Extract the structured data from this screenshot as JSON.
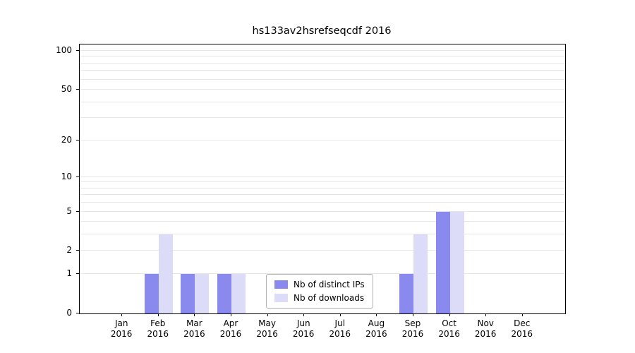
{
  "chart_data": {
    "type": "bar",
    "title": "hs133av2hsrefseqcdf 2016",
    "categories": [
      "Jan",
      "Feb",
      "Mar",
      "Apr",
      "May",
      "Jun",
      "Jul",
      "Aug",
      "Sep",
      "Oct",
      "Nov",
      "Dec"
    ],
    "year": "2016",
    "series": [
      {
        "name": "Nb of distinct IPs",
        "color": "#8a8aee",
        "values": [
          0,
          1,
          1,
          1,
          0,
          0,
          0,
          0,
          1,
          5,
          0,
          0
        ]
      },
      {
        "name": "Nb of downloads",
        "color": "#dcdcf8",
        "values": [
          0,
          3,
          1,
          1,
          0,
          0,
          0,
          0,
          3,
          5,
          0,
          0
        ]
      }
    ],
    "y_ticks": [
      0,
      1,
      2,
      5,
      10,
      20,
      50,
      100
    ],
    "grid_values": [
      1,
      2,
      3,
      4,
      5,
      6,
      7,
      8,
      9,
      10,
      20,
      30,
      40,
      50,
      60,
      70,
      80,
      90,
      100
    ],
    "scale": "log1p",
    "ylim": [
      0,
      112
    ],
    "xlabel": "",
    "ylabel": "",
    "grid": true,
    "legend_position": "lower-center"
  }
}
